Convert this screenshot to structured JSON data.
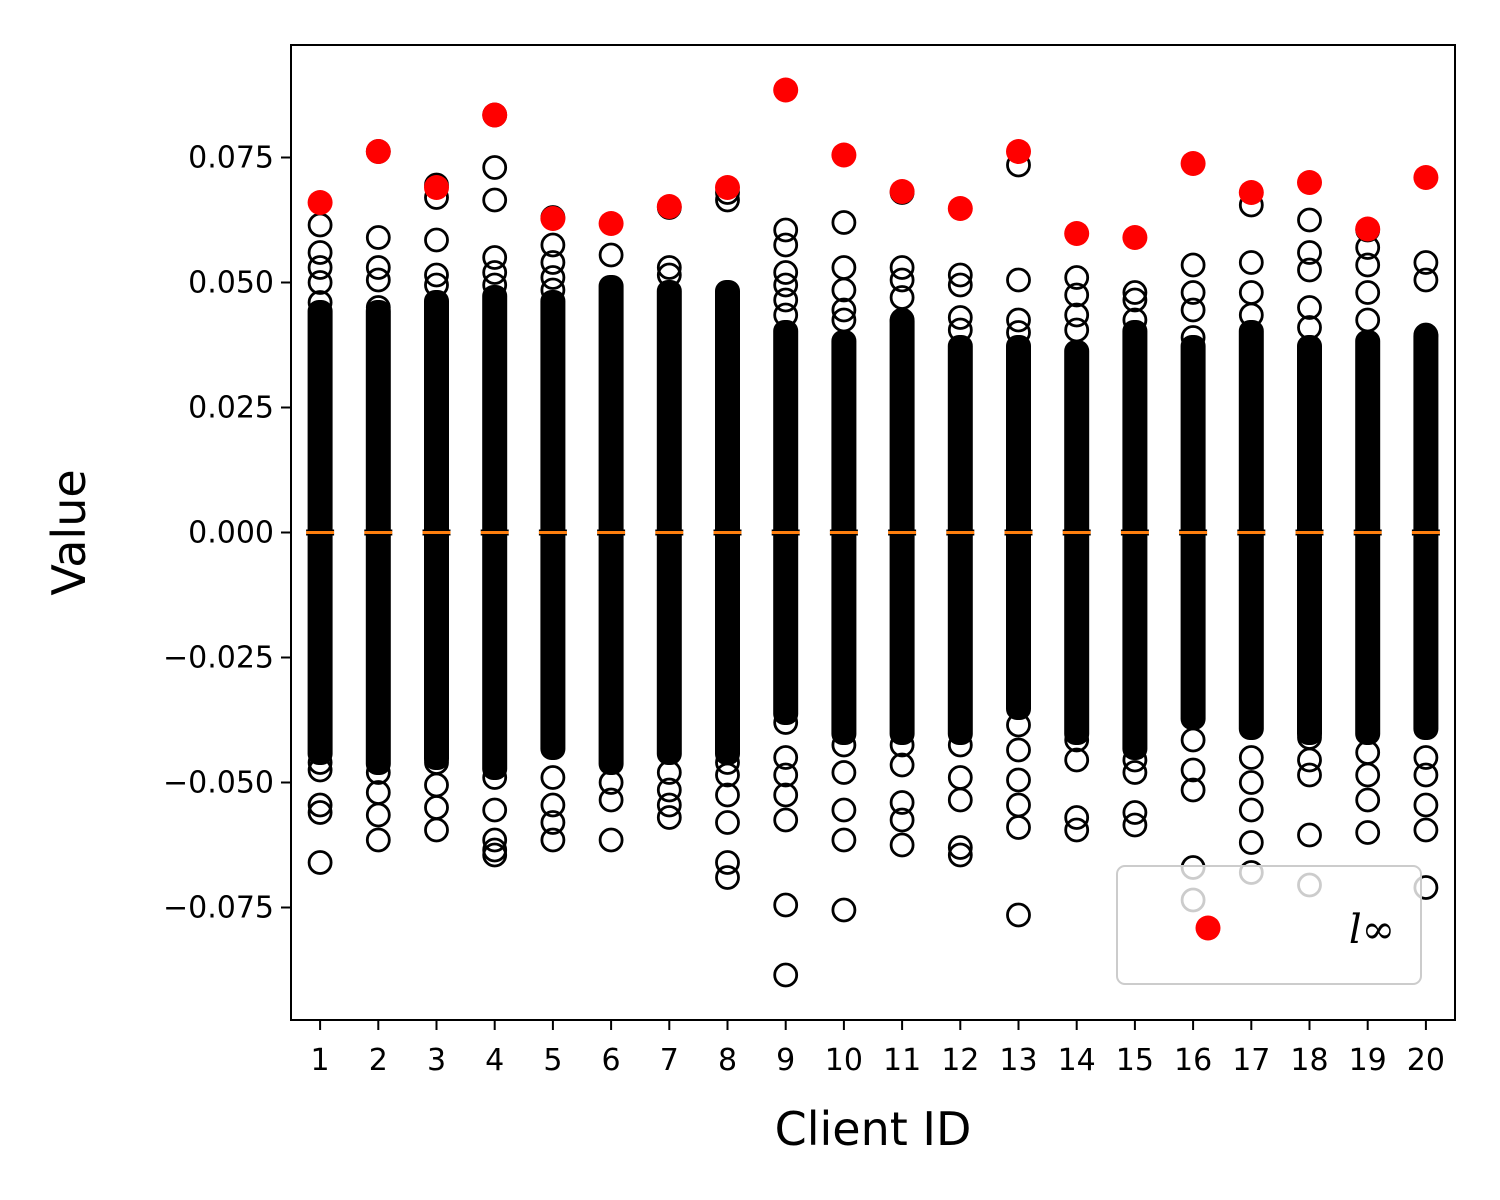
{
  "chart_data": {
    "type": "box",
    "xlabel": "Client ID",
    "ylabel": "Value",
    "categories": [
      "1",
      "2",
      "3",
      "4",
      "5",
      "6",
      "7",
      "8",
      "9",
      "10",
      "11",
      "12",
      "13",
      "14",
      "15",
      "16",
      "17",
      "18",
      "19",
      "20"
    ],
    "y_ticks": [
      {
        "value": 0.075,
        "label": "0.075"
      },
      {
        "value": 0.05,
        "label": "0.050"
      },
      {
        "value": 0.025,
        "label": "0.025"
      },
      {
        "value": 0.0,
        "label": "0.000"
      },
      {
        "value": -0.025,
        "label": "−0.025"
      },
      {
        "value": -0.05,
        "label": "−0.050"
      },
      {
        "value": -0.075,
        "label": "−0.075"
      }
    ],
    "ylim": [
      -0.0975,
      0.0975
    ],
    "xlim": [
      0.5,
      20.5
    ],
    "grid": false,
    "median": 0.0,
    "dense_band": [
      {
        "low": -0.044,
        "high": 0.044
      },
      {
        "low": -0.046,
        "high": 0.044
      },
      {
        "low": -0.045,
        "high": 0.046
      },
      {
        "low": -0.047,
        "high": 0.047
      },
      {
        "low": -0.043,
        "high": 0.046
      },
      {
        "low": -0.046,
        "high": 0.049
      },
      {
        "low": -0.044,
        "high": 0.048
      },
      {
        "low": -0.044,
        "high": 0.048
      },
      {
        "low": -0.036,
        "high": 0.04
      },
      {
        "low": -0.04,
        "high": 0.038
      },
      {
        "low": -0.04,
        "high": 0.042
      },
      {
        "low": -0.04,
        "high": 0.037
      },
      {
        "low": -0.035,
        "high": 0.037
      },
      {
        "low": -0.04,
        "high": 0.036
      },
      {
        "low": -0.043,
        "high": 0.04
      },
      {
        "low": -0.037,
        "high": 0.037
      },
      {
        "low": -0.039,
        "high": 0.04
      },
      {
        "low": -0.04,
        "high": 0.037
      },
      {
        "low": -0.04,
        "high": 0.038
      },
      {
        "low": -0.039,
        "high": 0.039
      }
    ],
    "outliers": [
      [
        0.0615,
        0.056,
        0.053,
        0.05,
        0.046,
        -0.046,
        -0.0475,
        -0.0545,
        -0.056,
        -0.066
      ],
      [
        0.0762,
        0.059,
        0.053,
        0.0505,
        0.045,
        -0.048,
        -0.052,
        -0.0565,
        -0.0615
      ],
      [
        0.0695,
        0.067,
        0.0585,
        0.0515,
        0.0495,
        -0.046,
        -0.0505,
        -0.055,
        -0.0595
      ],
      [
        0.0835,
        0.073,
        0.0665,
        0.055,
        0.052,
        0.0495,
        -0.049,
        -0.0555,
        -0.0615,
        -0.0635,
        -0.0645
      ],
      [
        0.063,
        0.0575,
        0.054,
        0.051,
        0.0485,
        -0.049,
        -0.0545,
        -0.058,
        -0.0615
      ],
      [
        0.0555,
        -0.05,
        -0.0535,
        -0.0615
      ],
      [
        0.065,
        0.053,
        0.0515,
        -0.048,
        -0.0515,
        -0.0545,
        -0.057
      ],
      [
        0.068,
        0.0665,
        0.0475,
        -0.046,
        -0.0485,
        -0.0525,
        -0.058,
        -0.066,
        -0.069
      ],
      [
        0.0605,
        0.0575,
        0.052,
        0.0495,
        0.0465,
        0.0435,
        -0.038,
        -0.045,
        -0.0485,
        -0.0525,
        -0.0575,
        -0.0745,
        -0.0885
      ],
      [
        0.062,
        0.053,
        0.0485,
        0.0445,
        0.0425,
        -0.0425,
        -0.048,
        -0.0555,
        -0.0615,
        -0.0755
      ],
      [
        0.068,
        0.053,
        0.0505,
        0.047,
        0.0425,
        -0.0425,
        -0.0465,
        -0.054,
        -0.0575,
        -0.0625
      ],
      [
        0.0515,
        0.0495,
        0.043,
        0.0405,
        -0.0425,
        -0.049,
        -0.0535,
        -0.063,
        -0.0645
      ],
      [
        0.0735,
        0.0505,
        0.0425,
        0.04,
        -0.0385,
        -0.0435,
        -0.0495,
        -0.0545,
        -0.059,
        -0.0765
      ],
      [
        0.051,
        0.0475,
        0.0435,
        0.0405,
        -0.0415,
        -0.0455,
        -0.057,
        -0.0595
      ],
      [
        0.048,
        0.0465,
        0.0425,
        -0.0455,
        -0.048,
        -0.056,
        -0.0585
      ],
      [
        0.0535,
        0.048,
        0.0445,
        0.039,
        -0.0415,
        -0.0475,
        -0.0515,
        -0.067,
        -0.0735
      ],
      [
        0.0655,
        0.054,
        0.048,
        0.0435,
        -0.045,
        -0.05,
        -0.0555,
        -0.062,
        -0.068
      ],
      [
        0.0625,
        0.056,
        0.0525,
        0.045,
        0.041,
        -0.041,
        -0.0455,
        -0.0485,
        -0.0605,
        -0.0705
      ],
      [
        0.0605,
        0.057,
        0.0535,
        0.048,
        0.0425,
        -0.044,
        -0.0485,
        -0.0535,
        -0.06
      ],
      [
        0.054,
        0.0505,
        0.0395,
        -0.045,
        -0.0485,
        -0.0545,
        -0.0595,
        -0.071
      ]
    ],
    "series": [
      {
        "name": "l∞",
        "color": "#ff0000",
        "values": [
          0.066,
          0.0762,
          0.069,
          0.0835,
          0.0628,
          0.0618,
          0.0652,
          0.069,
          0.0885,
          0.0755,
          0.0682,
          0.0648,
          0.0762,
          0.0598,
          0.059,
          0.0738,
          0.068,
          0.07,
          0.0607,
          0.071
        ]
      }
    ],
    "legend_position": "lower right",
    "colors": {
      "box": "#000000",
      "median": "#ff7f0e",
      "marker": "#ff0000"
    }
  }
}
